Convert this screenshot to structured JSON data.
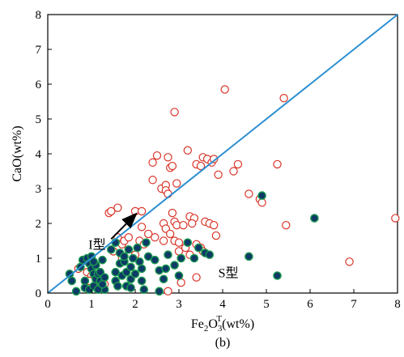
{
  "chart_data": {
    "type": "scatter",
    "xlabel_main": "Fe",
    "xlabel_sub1": "2",
    "xlabel_mid": "O",
    "xlabel_sub2": "3",
    "xlabel_sup": "T",
    "xlabel_tail": "(wt%)",
    "ylabel": "CaO(wt%)",
    "caption": "(b)",
    "xlim": [
      0,
      8
    ],
    "ylim": [
      0,
      8
    ],
    "xticks": [
      "0",
      "1",
      "2",
      "3",
      "4",
      "5",
      "6",
      "7",
      "8"
    ],
    "yticks": [
      "0",
      "1",
      "2",
      "3",
      "4",
      "5",
      "6",
      "7",
      "8"
    ],
    "divider_line": {
      "x": [
        0,
        8
      ],
      "y": [
        0,
        8
      ],
      "color": "#2b8fd1"
    },
    "annotations": {
      "i_type": {
        "text": "I型",
        "arrow_from": [
          1.45,
          1.55
        ],
        "arrow_to": [
          2.0,
          2.25
        ]
      },
      "s_type": {
        "text": "S型",
        "at": [
          3.9,
          0.45
        ]
      }
    },
    "series": [
      {
        "marker": "open-circle",
        "color": "#d9352a",
        "points": [
          [
            0.7,
            0.7
          ],
          [
            0.9,
            0.6
          ],
          [
            1.0,
            0.5
          ],
          [
            1.1,
            0.3
          ],
          [
            1.2,
            0.15
          ],
          [
            1.3,
            0.25
          ],
          [
            0.95,
            0.35
          ],
          [
            1.4,
            2.3
          ],
          [
            1.45,
            2.35
          ],
          [
            1.6,
            2.45
          ],
          [
            2.0,
            2.35
          ],
          [
            2.15,
            2.35
          ],
          [
            2.15,
            1.9
          ],
          [
            1.6,
            1.6
          ],
          [
            1.7,
            1.4
          ],
          [
            1.75,
            1.5
          ],
          [
            1.85,
            1.6
          ],
          [
            2.1,
            1.5
          ],
          [
            2.2,
            1.4
          ],
          [
            2.3,
            1.7
          ],
          [
            1.5,
            1.2
          ],
          [
            1.7,
            1.0
          ],
          [
            2.0,
            1.1
          ],
          [
            2.4,
            3.75
          ],
          [
            2.5,
            3.95
          ],
          [
            2.4,
            3.25
          ],
          [
            2.6,
            3.0
          ],
          [
            2.7,
            3.1
          ],
          [
            2.7,
            2.95
          ],
          [
            2.75,
            2.85
          ],
          [
            2.75,
            3.9
          ],
          [
            2.8,
            3.6
          ],
          [
            2.85,
            3.65
          ],
          [
            2.95,
            3.15
          ],
          [
            2.9,
            5.2
          ],
          [
            3.2,
            4.1
          ],
          [
            2.85,
            2.3
          ],
          [
            2.9,
            2.05
          ],
          [
            2.95,
            1.95
          ],
          [
            3.1,
            1.95
          ],
          [
            2.65,
            2.0
          ],
          [
            3.25,
            2.2
          ],
          [
            3.35,
            2.15
          ],
          [
            3.3,
            2.0
          ],
          [
            3.6,
            2.05
          ],
          [
            3.7,
            2.0
          ],
          [
            3.8,
            1.95
          ],
          [
            3.85,
            1.65
          ],
          [
            2.7,
            1.85
          ],
          [
            2.8,
            1.7
          ],
          [
            2.9,
            1.5
          ],
          [
            3.0,
            1.45
          ],
          [
            3.0,
            1.2
          ],
          [
            3.15,
            1.3
          ],
          [
            3.25,
            1.1
          ],
          [
            3.4,
            1.4
          ],
          [
            3.5,
            1.3
          ],
          [
            3.55,
            1.2
          ],
          [
            3.4,
            3.7
          ],
          [
            3.5,
            3.65
          ],
          [
            3.55,
            3.9
          ],
          [
            3.65,
            3.85
          ],
          [
            3.75,
            3.75
          ],
          [
            3.8,
            3.85
          ],
          [
            3.9,
            3.4
          ],
          [
            4.05,
            5.85
          ],
          [
            4.25,
            3.5
          ],
          [
            4.35,
            3.7
          ],
          [
            4.6,
            2.85
          ],
          [
            4.85,
            2.7
          ],
          [
            4.9,
            2.6
          ],
          [
            5.25,
            3.7
          ],
          [
            5.4,
            5.6
          ],
          [
            5.45,
            1.95
          ],
          [
            6.9,
            0.9
          ],
          [
            7.95,
            2.15
          ],
          [
            3.4,
            0.45
          ],
          [
            3.05,
            0.3
          ],
          [
            2.75,
            0.05
          ],
          [
            2.65,
            1.5
          ],
          [
            2.45,
            1.6
          ]
        ]
      },
      {
        "marker": "filled-circle",
        "color": "#0d3a66",
        "edge": "#1d9a4f",
        "points": [
          [
            0.5,
            0.55
          ],
          [
            0.55,
            0.35
          ],
          [
            0.65,
            0.05
          ],
          [
            0.75,
            0.75
          ],
          [
            0.8,
            0.95
          ],
          [
            0.85,
            0.35
          ],
          [
            0.85,
            0.15
          ],
          [
            0.9,
            1.0
          ],
          [
            0.95,
            0.1
          ],
          [
            0.95,
            0.85
          ],
          [
            1.0,
            0.7
          ],
          [
            1.0,
            1.05
          ],
          [
            1.05,
            0.2
          ],
          [
            1.05,
            0.55
          ],
          [
            1.1,
            0.4
          ],
          [
            1.1,
            0.8
          ],
          [
            1.15,
            0.55
          ],
          [
            1.2,
            0.35
          ],
          [
            1.2,
            0.6
          ],
          [
            1.25,
            0.95
          ],
          [
            1.3,
            0.45
          ],
          [
            1.3,
            0.1
          ],
          [
            1.45,
            1.25
          ],
          [
            1.55,
            0.6
          ],
          [
            1.55,
            0.35
          ],
          [
            1.6,
            0.2
          ],
          [
            1.65,
            1.15
          ],
          [
            1.65,
            0.85
          ],
          [
            1.7,
            0.5
          ],
          [
            1.75,
            0.9
          ],
          [
            1.75,
            1.05
          ],
          [
            1.8,
            0.6
          ],
          [
            1.8,
            0.2
          ],
          [
            1.85,
            1.25
          ],
          [
            1.9,
            0.75
          ],
          [
            1.9,
            0.4
          ],
          [
            1.95,
            1.0
          ],
          [
            2.0,
            0.55
          ],
          [
            2.05,
            1.3
          ],
          [
            2.1,
            0.9
          ],
          [
            2.15,
            0.7
          ],
          [
            2.15,
            0.35
          ],
          [
            2.2,
            0.1
          ],
          [
            2.3,
            1.05
          ],
          [
            2.45,
            0.95
          ],
          [
            2.55,
            0.65
          ],
          [
            2.65,
            0.4
          ],
          [
            2.7,
            0.7
          ],
          [
            2.75,
            1.1
          ],
          [
            2.9,
            0.8
          ],
          [
            3.05,
            1.0
          ],
          [
            3.2,
            1.45
          ],
          [
            3.35,
            1.0
          ],
          [
            3.45,
            1.3
          ],
          [
            3.6,
            1.15
          ],
          [
            3.7,
            1.1
          ],
          [
            4.6,
            1.05
          ],
          [
            4.9,
            2.8
          ],
          [
            5.25,
            0.5
          ],
          [
            6.1,
            2.15
          ],
          [
            1.15,
            0.1
          ],
          [
            1.55,
            1.45
          ],
          [
            2.25,
            1.45
          ],
          [
            3.0,
            0.5
          ],
          [
            1.9,
            0.15
          ],
          [
            2.55,
            0.05
          ],
          [
            1.05,
            0.9
          ],
          [
            1.25,
            0.25
          ]
        ]
      }
    ]
  }
}
